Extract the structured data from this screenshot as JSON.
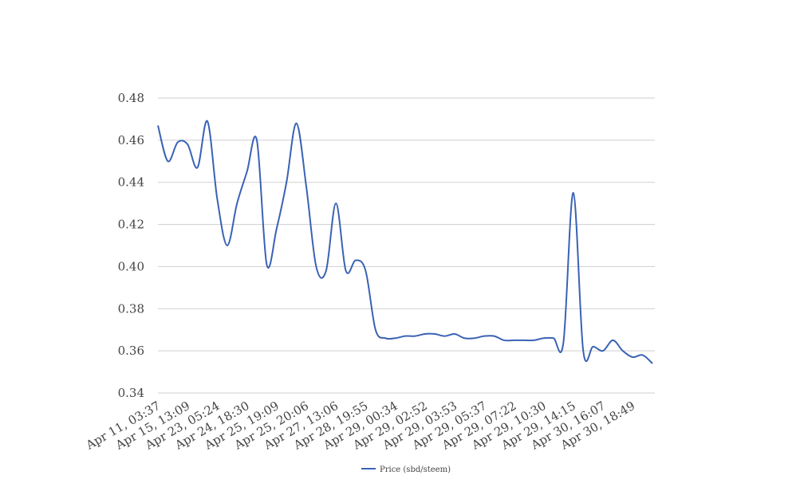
{
  "chart_data": {
    "type": "line",
    "categories": [
      "Apr 11, 03:37",
      null,
      null,
      "Apr 15, 13:09",
      null,
      null,
      "Apr 23, 05:24",
      null,
      null,
      "Apr 24, 18:30",
      null,
      null,
      "Apr 25, 19:09",
      null,
      null,
      "Apr 25, 20:06",
      null,
      null,
      "Apr 27, 13:06",
      null,
      null,
      "Apr 28, 19:55",
      null,
      null,
      "Apr 29, 00:34",
      null,
      null,
      "Apr 29, 02:52",
      null,
      null,
      "Apr 29, 03:53",
      null,
      null,
      "Apr 29, 05:37",
      null,
      null,
      "Apr 29, 07:22",
      null,
      null,
      "Apr 29, 10:30",
      null,
      null,
      "Apr 29, 14:15",
      null,
      null,
      "Apr 30, 16:07",
      null,
      null,
      "Apr 30, 18:49",
      null,
      null
    ],
    "series": [
      {
        "name": "Price (sbd/steem)",
        "color": "#3a62b5",
        "values": [
          0.467,
          0.45,
          0.459,
          0.458,
          0.447,
          0.469,
          0.432,
          0.41,
          0.43,
          0.445,
          0.46,
          0.401,
          0.418,
          0.44,
          0.468,
          0.438,
          0.4,
          0.398,
          0.43,
          0.398,
          0.403,
          0.398,
          0.37,
          0.366,
          0.366,
          0.367,
          0.367,
          0.368,
          0.368,
          0.367,
          0.368,
          0.366,
          0.366,
          0.367,
          0.367,
          0.365,
          0.365,
          0.365,
          0.365,
          0.366,
          0.366,
          0.364,
          0.435,
          0.36,
          0.362,
          0.36,
          0.365,
          0.36,
          0.357,
          0.358,
          0.354
        ]
      }
    ],
    "ylim": [
      0.34,
      0.48
    ],
    "yticks": [
      {
        "value": 0.34,
        "label": "0.34"
      },
      {
        "value": 0.36,
        "label": "0.36"
      },
      {
        "value": 0.38,
        "label": "0.38"
      },
      {
        "value": 0.4,
        "label": "0.40"
      },
      {
        "value": 0.42,
        "label": "0.42"
      },
      {
        "value": 0.44,
        "label": "0.44"
      },
      {
        "value": 0.46,
        "label": "0.46"
      },
      {
        "value": 0.48,
        "label": "0.48"
      }
    ],
    "grid": true,
    "legend": "bottom"
  }
}
